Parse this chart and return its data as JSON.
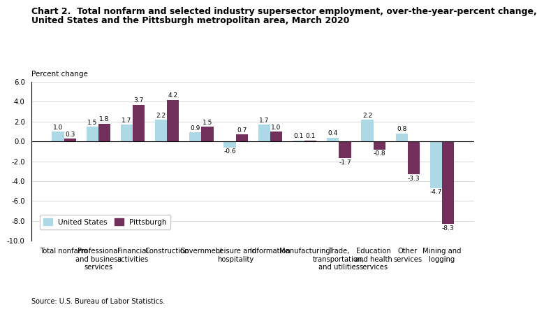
{
  "categories": [
    "Total nonfarm",
    "Professional\nand business\nservices",
    "Financial\nactivities",
    "Construction",
    "Government",
    "Leisure and\nhospitality",
    "Information",
    "Manufacturing",
    "Trade,\ntransportation,\nand utilities",
    "Education\nand health\nservices",
    "Other\nservices",
    "Mining and\nlogging"
  ],
  "us_values": [
    1.0,
    1.5,
    1.7,
    2.2,
    0.9,
    -0.6,
    1.7,
    0.1,
    0.4,
    2.2,
    0.8,
    -4.7
  ],
  "pitt_values": [
    0.3,
    1.8,
    3.7,
    4.2,
    1.5,
    0.7,
    1.0,
    0.1,
    -1.7,
    -0.8,
    -3.3,
    -8.3
  ],
  "us_color": "#add8e6",
  "pitt_color": "#722f5b",
  "title_line1": "Chart 2.  Total nonfarm and selected industry supersector employment, over-the-year-percent change,",
  "title_line2": "United States and the Pittsburgh metropolitan area, March 2020",
  "ylabel": "Percent change",
  "ylim": [
    -10.0,
    6.0
  ],
  "yticks": [
    -10.0,
    -8.0,
    -6.0,
    -4.0,
    -2.0,
    0.0,
    2.0,
    4.0,
    6.0
  ],
  "legend_us": "United States",
  "legend_pitt": "Pittsburgh",
  "source": "Source: U.S. Bureau of Labor Statistics.",
  "title_fontsize": 9.0,
  "label_fontsize": 7.5,
  "tick_fontsize": 7.2,
  "bar_label_fontsize": 6.5
}
